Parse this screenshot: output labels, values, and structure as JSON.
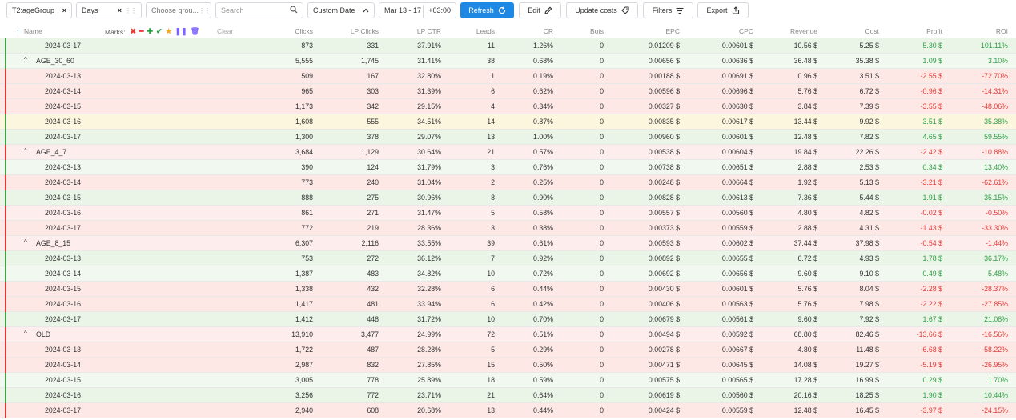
{
  "toolbar": {
    "group1": "T2:ageGroup",
    "group2": "Days",
    "group3_placeholder": "Choose grou...",
    "search_placeholder": "Search",
    "date_mode": "Custom Date",
    "date_range": "Mar 13 - 17",
    "timezone": "+03:00",
    "refresh": "Refresh",
    "edit": "Edit",
    "update_costs": "Update costs",
    "filters": "Filters",
    "export": "Export",
    "close_glyph": "×",
    "accent": "#1e88e5"
  },
  "header": {
    "name": "Name",
    "marks_label": "Marks:",
    "clear": "Clear",
    "columns": [
      "Clicks",
      "LP Clicks",
      "LP CTR",
      "Leads",
      "CR",
      "Bots",
      "EPC",
      "CPC",
      "Revenue",
      "Cost",
      "Profit",
      "ROI"
    ]
  },
  "marks": [
    {
      "icon": "x-mark-icon",
      "glyph": "✖",
      "color": "#e53935"
    },
    {
      "icon": "minus-mark-icon",
      "glyph": "━",
      "color": "#e53935"
    },
    {
      "icon": "plus-mark-icon",
      "glyph": "✚",
      "color": "#2ea043"
    },
    {
      "icon": "check-mark-icon",
      "glyph": "✔",
      "color": "#2ea043"
    },
    {
      "icon": "star-mark-icon",
      "glyph": "★",
      "color": "#f5a623"
    },
    {
      "icon": "pause-mark-icon",
      "glyph": "❚❚",
      "color": "#7b61ff"
    },
    {
      "icon": "trash-mark-icon",
      "glyph": "🗑",
      "color": "#7b61ff"
    }
  ],
  "colors": {
    "positive": "#2ea043",
    "negative": "#e53935",
    "group_bar_positive": "#43a047",
    "group_bar_negative": "#e53935",
    "day_bar_positive": "#43a047",
    "day_bar_negative": "#e53935",
    "day_bar_neutral": "#f5c342"
  },
  "rows": [
    {
      "type": "day",
      "name": "2024-03-17",
      "state": "green",
      "bar": "green",
      "v": [
        "873",
        "331",
        "37.91%",
        "11",
        "1.26%",
        "0",
        "0.01209 $",
        "0.00601 $",
        "10.56 $",
        "5.25 $",
        "5.30 $",
        "101.11%"
      ],
      "sign": "pos"
    },
    {
      "type": "group",
      "name": "AGE_30_60",
      "state": "g-green",
      "bar": "green",
      "v": [
        "5,555",
        "1,745",
        "31.41%",
        "38",
        "0.68%",
        "0",
        "0.00656 $",
        "0.00636 $",
        "36.48 $",
        "35.38 $",
        "1.09 $",
        "3.10%"
      ],
      "sign": "pos"
    },
    {
      "type": "day",
      "name": "2024-03-13",
      "state": "red",
      "bar": "red",
      "v": [
        "509",
        "167",
        "32.80%",
        "1",
        "0.19%",
        "0",
        "0.00188 $",
        "0.00691 $",
        "0.96 $",
        "3.51 $",
        "-2.55 $",
        "-72.70%"
      ],
      "sign": "neg"
    },
    {
      "type": "day",
      "name": "2024-03-14",
      "state": "red",
      "bar": "red",
      "v": [
        "965",
        "303",
        "31.39%",
        "6",
        "0.62%",
        "0",
        "0.00596 $",
        "0.00696 $",
        "5.76 $",
        "6.72 $",
        "-0.96 $",
        "-14.31%"
      ],
      "sign": "neg"
    },
    {
      "type": "day",
      "name": "2024-03-15",
      "state": "red",
      "bar": "red",
      "v": [
        "1,173",
        "342",
        "29.15%",
        "4",
        "0.34%",
        "0",
        "0.00327 $",
        "0.00630 $",
        "3.84 $",
        "7.39 $",
        "-3.55 $",
        "-48.06%"
      ],
      "sign": "neg"
    },
    {
      "type": "day",
      "name": "2024-03-16",
      "state": "yellow",
      "bar": "green",
      "v": [
        "1,608",
        "555",
        "34.51%",
        "14",
        "0.87%",
        "0",
        "0.00835 $",
        "0.00617 $",
        "13.44 $",
        "9.92 $",
        "3.51 $",
        "35.38%"
      ],
      "sign": "pos"
    },
    {
      "type": "day",
      "name": "2024-03-17",
      "state": "green",
      "bar": "green",
      "v": [
        "1,300",
        "378",
        "29.07%",
        "13",
        "1.00%",
        "0",
        "0.00960 $",
        "0.00601 $",
        "12.48 $",
        "7.82 $",
        "4.65 $",
        "59.55%"
      ],
      "sign": "pos"
    },
    {
      "type": "group",
      "name": "AGE_4_7",
      "state": "g-red",
      "bar": "red",
      "v": [
        "3,684",
        "1,129",
        "30.64%",
        "21",
        "0.57%",
        "0",
        "0.00538 $",
        "0.00604 $",
        "19.84 $",
        "22.26 $",
        "-2.42 $",
        "-10.88%"
      ],
      "sign": "neg"
    },
    {
      "type": "day",
      "name": "2024-03-13",
      "state": "g-green",
      "bar": "green",
      "v": [
        "390",
        "124",
        "31.79%",
        "3",
        "0.76%",
        "0",
        "0.00738 $",
        "0.00651 $",
        "2.88 $",
        "2.53 $",
        "0.34 $",
        "13.40%"
      ],
      "sign": "pos"
    },
    {
      "type": "day",
      "name": "2024-03-14",
      "state": "red",
      "bar": "red",
      "v": [
        "773",
        "240",
        "31.04%",
        "2",
        "0.25%",
        "0",
        "0.00248 $",
        "0.00664 $",
        "1.92 $",
        "5.13 $",
        "-3.21 $",
        "-62.61%"
      ],
      "sign": "neg"
    },
    {
      "type": "day",
      "name": "2024-03-15",
      "state": "green",
      "bar": "green",
      "v": [
        "888",
        "275",
        "30.96%",
        "8",
        "0.90%",
        "0",
        "0.00828 $",
        "0.00613 $",
        "7.36 $",
        "5.44 $",
        "1.91 $",
        "35.15%"
      ],
      "sign": "pos"
    },
    {
      "type": "day",
      "name": "2024-03-16",
      "state": "g-red",
      "bar": "red",
      "v": [
        "861",
        "271",
        "31.47%",
        "5",
        "0.58%",
        "0",
        "0.00557 $",
        "0.00560 $",
        "4.80 $",
        "4.82 $",
        "-0.02 $",
        "-0.50%"
      ],
      "sign": "neg"
    },
    {
      "type": "day",
      "name": "2024-03-17",
      "state": "red",
      "bar": "red",
      "v": [
        "772",
        "219",
        "28.36%",
        "3",
        "0.38%",
        "0",
        "0.00373 $",
        "0.00559 $",
        "2.88 $",
        "4.31 $",
        "-1.43 $",
        "-33.30%"
      ],
      "sign": "neg"
    },
    {
      "type": "group",
      "name": "AGE_8_15",
      "state": "g-red",
      "bar": "red",
      "v": [
        "6,307",
        "2,116",
        "33.55%",
        "39",
        "0.61%",
        "0",
        "0.00593 $",
        "0.00602 $",
        "37.44 $",
        "37.98 $",
        "-0.54 $",
        "-1.44%"
      ],
      "sign": "neg"
    },
    {
      "type": "day",
      "name": "2024-03-13",
      "state": "green",
      "bar": "green",
      "v": [
        "753",
        "272",
        "36.12%",
        "7",
        "0.92%",
        "0",
        "0.00892 $",
        "0.00655 $",
        "6.72 $",
        "4.93 $",
        "1.78 $",
        "36.17%"
      ],
      "sign": "pos"
    },
    {
      "type": "day",
      "name": "2024-03-14",
      "state": "g-green",
      "bar": "green",
      "v": [
        "1,387",
        "483",
        "34.82%",
        "10",
        "0.72%",
        "0",
        "0.00692 $",
        "0.00656 $",
        "9.60 $",
        "9.10 $",
        "0.49 $",
        "5.48%"
      ],
      "sign": "pos"
    },
    {
      "type": "day",
      "name": "2024-03-15",
      "state": "red",
      "bar": "red",
      "v": [
        "1,338",
        "432",
        "32.28%",
        "6",
        "0.44%",
        "0",
        "0.00430 $",
        "0.00601 $",
        "5.76 $",
        "8.04 $",
        "-2.28 $",
        "-28.37%"
      ],
      "sign": "neg"
    },
    {
      "type": "day",
      "name": "2024-03-16",
      "state": "red",
      "bar": "red",
      "v": [
        "1,417",
        "481",
        "33.94%",
        "6",
        "0.42%",
        "0",
        "0.00406 $",
        "0.00563 $",
        "5.76 $",
        "7.98 $",
        "-2.22 $",
        "-27.85%"
      ],
      "sign": "neg"
    },
    {
      "type": "day",
      "name": "2024-03-17",
      "state": "green",
      "bar": "green",
      "v": [
        "1,412",
        "448",
        "31.72%",
        "10",
        "0.70%",
        "0",
        "0.00679 $",
        "0.00561 $",
        "9.60 $",
        "7.92 $",
        "1.67 $",
        "21.08%"
      ],
      "sign": "pos"
    },
    {
      "type": "group",
      "name": "OLD",
      "state": "g-red",
      "bar": "red",
      "v": [
        "13,910",
        "3,477",
        "24.99%",
        "72",
        "0.51%",
        "0",
        "0.00494 $",
        "0.00592 $",
        "68.80 $",
        "82.46 $",
        "-13.66 $",
        "-16.56%"
      ],
      "sign": "neg"
    },
    {
      "type": "day",
      "name": "2024-03-13",
      "state": "red",
      "bar": "red",
      "v": [
        "1,722",
        "487",
        "28.28%",
        "5",
        "0.29%",
        "0",
        "0.00278 $",
        "0.00667 $",
        "4.80 $",
        "11.48 $",
        "-6.68 $",
        "-58.22%"
      ],
      "sign": "neg"
    },
    {
      "type": "day",
      "name": "2024-03-14",
      "state": "red",
      "bar": "red",
      "v": [
        "2,987",
        "832",
        "27.85%",
        "15",
        "0.50%",
        "0",
        "0.00471 $",
        "0.00645 $",
        "14.08 $",
        "19.27 $",
        "-5.19 $",
        "-26.95%"
      ],
      "sign": "neg"
    },
    {
      "type": "day",
      "name": "2024-03-15",
      "state": "g-green",
      "bar": "green",
      "v": [
        "3,005",
        "778",
        "25.89%",
        "18",
        "0.59%",
        "0",
        "0.00575 $",
        "0.00565 $",
        "17.28 $",
        "16.99 $",
        "0.29 $",
        "1.70%"
      ],
      "sign": "pos"
    },
    {
      "type": "day",
      "name": "2024-03-16",
      "state": "green",
      "bar": "green",
      "v": [
        "3,256",
        "772",
        "23.71%",
        "21",
        "0.64%",
        "0",
        "0.00619 $",
        "0.00560 $",
        "20.16 $",
        "18.25 $",
        "1.90 $",
        "10.44%"
      ],
      "sign": "pos"
    },
    {
      "type": "day",
      "name": "2024-03-17",
      "state": "red",
      "bar": "red",
      "v": [
        "2,940",
        "608",
        "20.68%",
        "13",
        "0.44%",
        "0",
        "0.00424 $",
        "0.00559 $",
        "12.48 $",
        "16.45 $",
        "-3.97 $",
        "-24.15%"
      ],
      "sign": "neg"
    }
  ]
}
